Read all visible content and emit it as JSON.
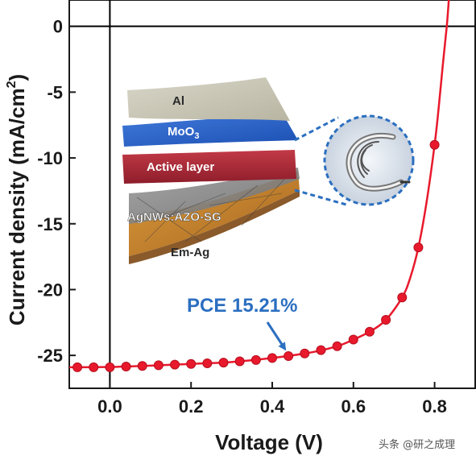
{
  "chart_data": {
    "type": "scatter",
    "xlabel": "Voltage (V)",
    "ylabel": "Current density (mA/cm",
    "ylabel_sup": "2",
    "ylabel_end": ")",
    "xlim": [
      -0.1,
      0.9
    ],
    "ylim": [
      -27.5,
      2
    ],
    "x_ticks": [
      {
        "value": 0.0,
        "label": "0.0"
      },
      {
        "value": 0.2,
        "label": "0.2"
      },
      {
        "value": 0.4,
        "label": "0.4"
      },
      {
        "value": 0.6,
        "label": "0.6"
      },
      {
        "value": 0.8,
        "label": "0.8"
      }
    ],
    "y_ticks": [
      {
        "value": 0,
        "label": "0"
      },
      {
        "value": -5,
        "label": "-5"
      },
      {
        "value": -10,
        "label": "-10"
      },
      {
        "value": -15,
        "label": "-15"
      },
      {
        "value": -20,
        "label": "-20"
      },
      {
        "value": -25,
        "label": "-25"
      }
    ],
    "series": [
      {
        "color": "#e8192c",
        "points": [
          {
            "x": -0.08,
            "y": -25.9
          },
          {
            "x": -0.04,
            "y": -25.9
          },
          {
            "x": 0.0,
            "y": -25.9
          },
          {
            "x": 0.04,
            "y": -25.85
          },
          {
            "x": 0.08,
            "y": -25.8
          },
          {
            "x": 0.12,
            "y": -25.75
          },
          {
            "x": 0.16,
            "y": -25.7
          },
          {
            "x": 0.2,
            "y": -25.65
          },
          {
            "x": 0.24,
            "y": -25.6
          },
          {
            "x": 0.28,
            "y": -25.55
          },
          {
            "x": 0.32,
            "y": -25.45
          },
          {
            "x": 0.36,
            "y": -25.35
          },
          {
            "x": 0.4,
            "y": -25.2
          },
          {
            "x": 0.44,
            "y": -25.05
          },
          {
            "x": 0.48,
            "y": -24.85
          },
          {
            "x": 0.52,
            "y": -24.6
          },
          {
            "x": 0.56,
            "y": -24.3
          },
          {
            "x": 0.6,
            "y": -23.8
          },
          {
            "x": 0.64,
            "y": -23.2
          },
          {
            "x": 0.68,
            "y": -22.3
          },
          {
            "x": 0.72,
            "y": -20.6
          },
          {
            "x": 0.76,
            "y": -16.8
          },
          {
            "x": 0.8,
            "y": -9.0
          }
        ],
        "curve": [
          [
            -0.1,
            -25.9
          ],
          [
            0.0,
            -25.88
          ],
          [
            0.1,
            -25.78
          ],
          [
            0.2,
            -25.65
          ],
          [
            0.3,
            -25.5
          ],
          [
            0.4,
            -25.2
          ],
          [
            0.5,
            -24.75
          ],
          [
            0.56,
            -24.3
          ],
          [
            0.6,
            -23.8
          ],
          [
            0.64,
            -23.2
          ],
          [
            0.68,
            -22.3
          ],
          [
            0.72,
            -20.6
          ],
          [
            0.74,
            -19.1
          ],
          [
            0.76,
            -16.8
          ],
          [
            0.78,
            -13.4
          ],
          [
            0.8,
            -9.0
          ],
          [
            0.81,
            -6.2
          ],
          [
            0.82,
            -3.0
          ],
          [
            0.83,
            0.0
          ],
          [
            0.835,
            2.0
          ]
        ]
      }
    ],
    "annotation": {
      "text": "PCE  15.21%",
      "color": "#2b6fc0",
      "target": {
        "x": 0.48,
        "y": -24.6
      }
    },
    "inset": {
      "layers": [
        "Al",
        "MoO",
        "Active layer",
        "AgNWs:AZO-SG",
        "Em-Ag"
      ],
      "moo_sub": "3"
    },
    "grid": false
  },
  "watermark": "头条 @研之成理"
}
